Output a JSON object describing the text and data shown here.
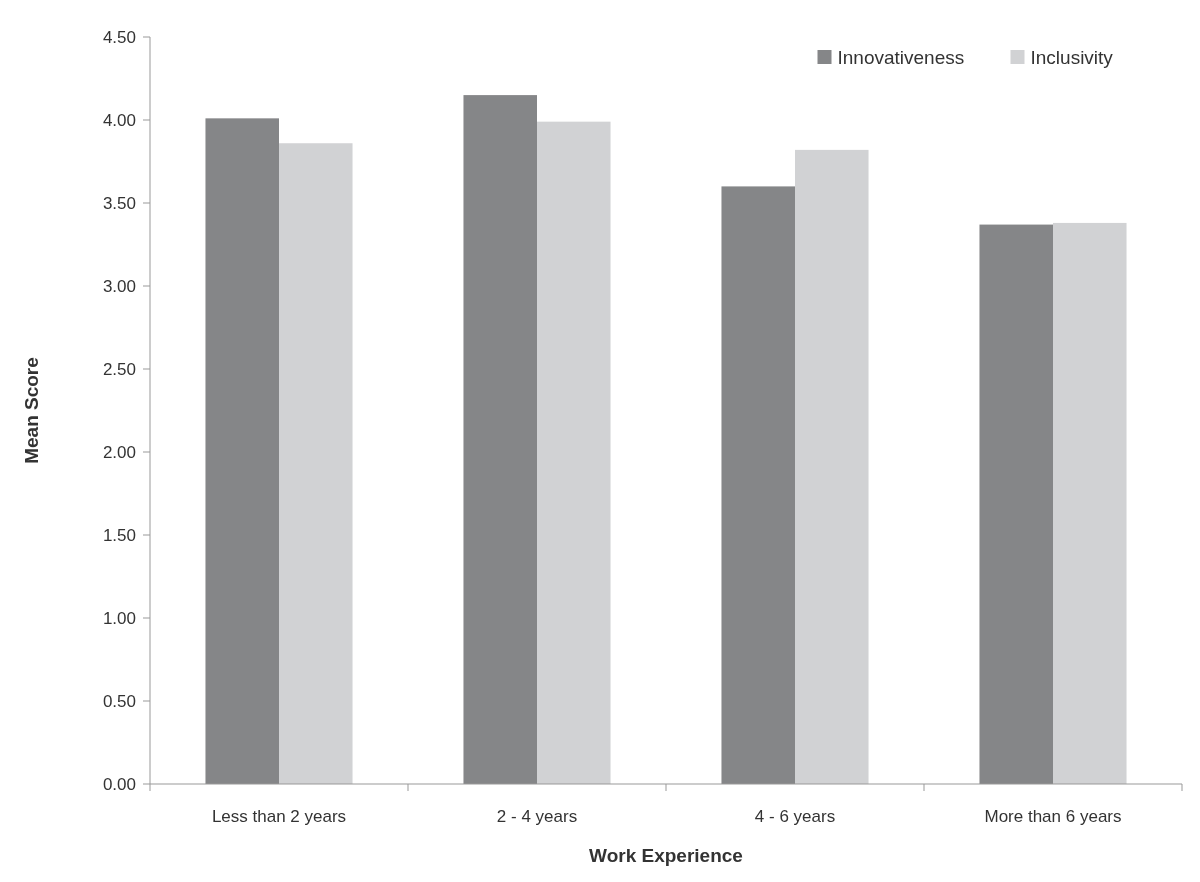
{
  "chart_data": {
    "type": "bar",
    "xlabel": "Work Experience",
    "ylabel": "Mean Score",
    "categories": [
      "Less than 2 years",
      "2 - 4 years",
      "4 - 6 years",
      "More than 6 years"
    ],
    "series": [
      {
        "name": "Innovativeness",
        "color": "#858688",
        "values": [
          4.01,
          4.15,
          3.6,
          3.37
        ]
      },
      {
        "name": "Inclusivity",
        "color": "#d1d2d4",
        "values": [
          3.86,
          3.99,
          3.82,
          3.38
        ]
      }
    ],
    "ylim": [
      0,
      4.5
    ],
    "yticks": [
      {
        "value": 0,
        "label": "0.00"
      },
      {
        "value": 0.5,
        "label": "0.50"
      },
      {
        "value": 1,
        "label": "1.00"
      },
      {
        "value": 1.5,
        "label": "1.50"
      },
      {
        "value": 2,
        "label": "2.00"
      },
      {
        "value": 2.5,
        "label": "2.50"
      },
      {
        "value": 3,
        "label": "3.00"
      },
      {
        "value": 3.5,
        "label": "3.50"
      },
      {
        "value": 4,
        "label": "4.00"
      },
      {
        "value": 4.5,
        "label": "4.50"
      }
    ],
    "legend": "top right"
  }
}
